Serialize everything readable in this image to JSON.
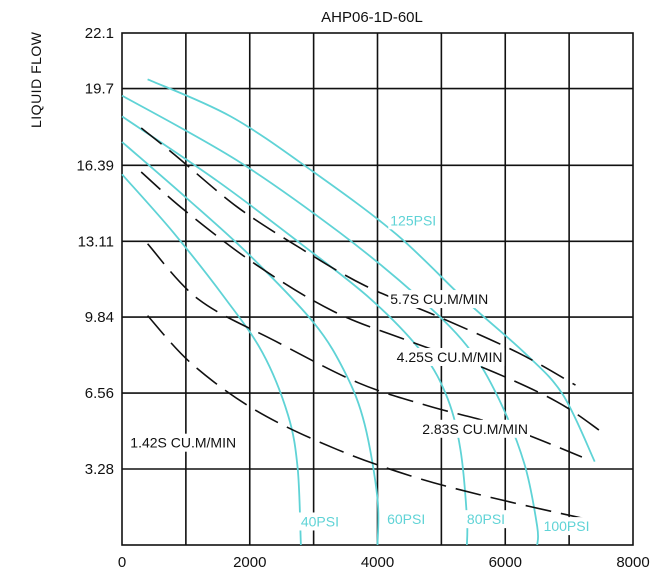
{
  "chart_data": {
    "type": "line",
    "title": "AHP06-1D-60L",
    "ylabel": "LIQUID FLOW",
    "xlabel": "",
    "xlim": [
      0,
      8000
    ],
    "ylim": [
      0,
      22.1
    ],
    "x_ticks": [
      "0",
      "2000",
      "4000",
      "6000",
      "8000"
    ],
    "y_ticks": [
      "3.28",
      "6.56",
      "9.84",
      "13.11",
      "16.39",
      "19.7",
      "22.1"
    ],
    "y_tick_values": [
      3.28,
      6.56,
      9.84,
      13.11,
      16.39,
      19.7,
      22.1
    ],
    "grid": true,
    "colors": {
      "pressure": "#5fd3d6",
      "airflow": "#111111",
      "grid": "#111111"
    },
    "pressure_curves": [
      {
        "name": "40PSI",
        "label_at": [
          2800,
          0.8
        ],
        "points": [
          [
            0,
            16.0
          ],
          [
            800,
            13.5
          ],
          [
            1600,
            10.7
          ],
          [
            2200,
            8.3
          ],
          [
            2600,
            5.6
          ],
          [
            2750,
            3.3
          ],
          [
            2800,
            0
          ]
        ]
      },
      {
        "name": "60PSI",
        "label_at": [
          4150,
          0.9
        ],
        "points": [
          [
            0,
            17.4
          ],
          [
            1000,
            15.0
          ],
          [
            2000,
            12.5
          ],
          [
            3000,
            9.6
          ],
          [
            3500,
            7.4
          ],
          [
            3800,
            5.2
          ],
          [
            4000,
            2.0
          ],
          [
            4000,
            0
          ]
        ]
      },
      {
        "name": "80PSI",
        "label_at": [
          5400,
          0.9
        ],
        "points": [
          [
            0,
            18.5
          ],
          [
            1500,
            15.7
          ],
          [
            2800,
            13.0
          ],
          [
            3900,
            10.6
          ],
          [
            4700,
            8.3
          ],
          [
            5100,
            6.3
          ],
          [
            5300,
            4.1
          ],
          [
            5400,
            1.2
          ],
          [
            5400,
            0
          ]
        ]
      },
      {
        "name": "100PSI",
        "label_at": [
          6600,
          0.6
        ],
        "points": [
          [
            0,
            19.4
          ],
          [
            1800,
            16.6
          ],
          [
            3400,
            13.5
          ],
          [
            4600,
            10.8
          ],
          [
            5400,
            8.6
          ],
          [
            5900,
            6.3
          ],
          [
            6300,
            3.5
          ],
          [
            6500,
            0.8
          ],
          [
            6500,
            0
          ]
        ]
      },
      {
        "name": "125PSI",
        "label_at": [
          4200,
          13.8
        ],
        "points": [
          [
            400,
            20.1
          ],
          [
            1700,
            18.5
          ],
          [
            3000,
            16.1
          ],
          [
            4300,
            13.4
          ],
          [
            5400,
            10.5
          ],
          [
            6300,
            8.3
          ],
          [
            6900,
            6.5
          ],
          [
            7400,
            3.6
          ]
        ]
      }
    ],
    "airflow_curves": [
      {
        "name": "5.7S CU.M/MIN",
        "label_at": [
          4200,
          10.4
        ],
        "points": [
          [
            300,
            18.0
          ],
          [
            800,
            16.9
          ],
          [
            1800,
            14.6
          ],
          [
            2800,
            12.8
          ],
          [
            3800,
            11.2
          ],
          [
            5000,
            9.8
          ],
          [
            6200,
            8.3
          ],
          [
            7100,
            6.9
          ]
        ]
      },
      {
        "name": "4.25S CU.M/MIN",
        "label_at": [
          4300,
          7.9
        ],
        "points": [
          [
            300,
            16.1
          ],
          [
            1000,
            14.4
          ],
          [
            2100,
            12.1
          ],
          [
            3300,
            10.1
          ],
          [
            4500,
            8.8
          ],
          [
            5700,
            7.6
          ],
          [
            6800,
            6.2
          ],
          [
            7500,
            4.9
          ]
        ]
      },
      {
        "name": "2.83S CU.M/MIN",
        "label_at": [
          4700,
          4.8
        ],
        "points": [
          [
            400,
            13.0
          ],
          [
            1200,
            10.6
          ],
          [
            2400,
            8.8
          ],
          [
            3700,
            7.0
          ],
          [
            4800,
            6.0
          ],
          [
            6000,
            5.1
          ],
          [
            7200,
            3.8
          ]
        ]
      },
      {
        "name": "1.42S CU.M/MIN",
        "label_at": [
          130,
          4.2
        ],
        "points": [
          [
            400,
            9.9
          ],
          [
            1100,
            7.8
          ],
          [
            2100,
            5.8
          ],
          [
            3300,
            4.2
          ],
          [
            4500,
            3.0
          ],
          [
            5700,
            2.1
          ],
          [
            7300,
            1.1
          ]
        ]
      }
    ]
  }
}
